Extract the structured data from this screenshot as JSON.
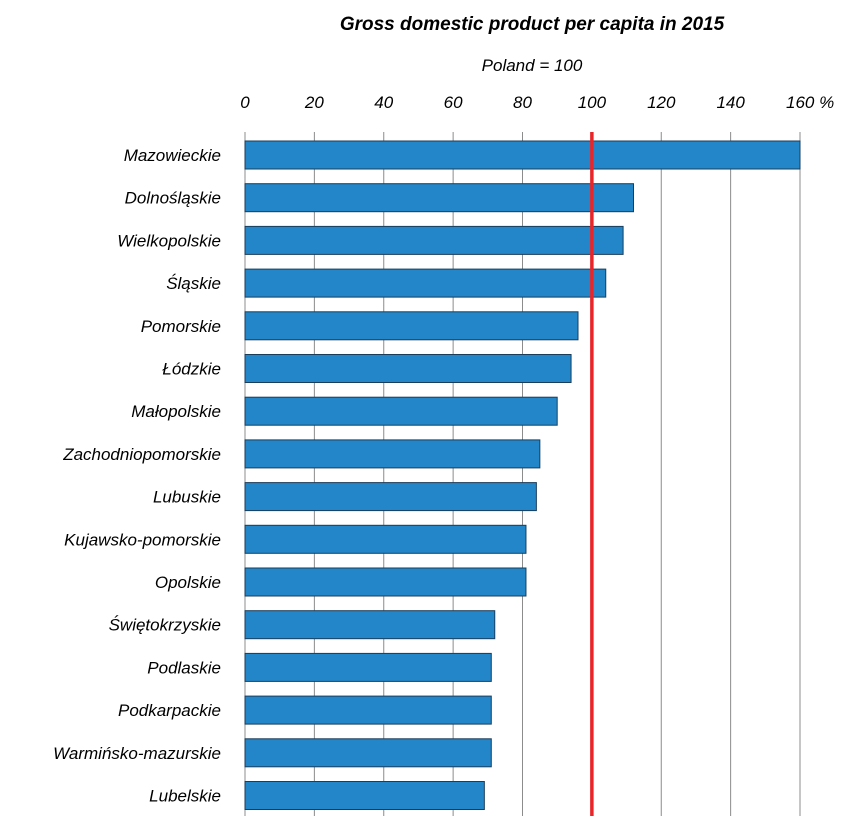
{
  "chart_data": {
    "type": "bar",
    "orientation": "horizontal",
    "title": "Gross domestic product per capita in 2015",
    "subtitle": "Poland = 100",
    "xlim": [
      0,
      160
    ],
    "xticks": [
      0,
      20,
      40,
      60,
      80,
      100,
      120,
      140,
      160
    ],
    "xtick_labels": [
      "0",
      "20",
      "40",
      "60",
      "80",
      "100",
      "120",
      "140",
      "160 %"
    ],
    "x_axis_position": "top",
    "grid": true,
    "categories": [
      "Mazowieckie",
      "Dolnośląskie",
      "Wielkopolskie",
      "Śląskie",
      "Pomorskie",
      "Łódzkie",
      "Małopolskie",
      "Zachodniopomorskie",
      "Lubuskie",
      "Kujawsko-pomorskie",
      "Opolskie",
      "Świętokrzyskie",
      "Podlaskie",
      "Podkarpackie",
      "Warmińsko-mazurskie",
      "Lubelskie"
    ],
    "values": [
      160,
      112,
      109,
      104,
      96,
      94,
      90,
      85,
      84,
      81,
      81,
      72,
      71,
      71,
      71,
      69
    ],
    "reference_line": {
      "value": 100,
      "color": "#e8262a"
    },
    "bar_color": "#2386c8"
  }
}
